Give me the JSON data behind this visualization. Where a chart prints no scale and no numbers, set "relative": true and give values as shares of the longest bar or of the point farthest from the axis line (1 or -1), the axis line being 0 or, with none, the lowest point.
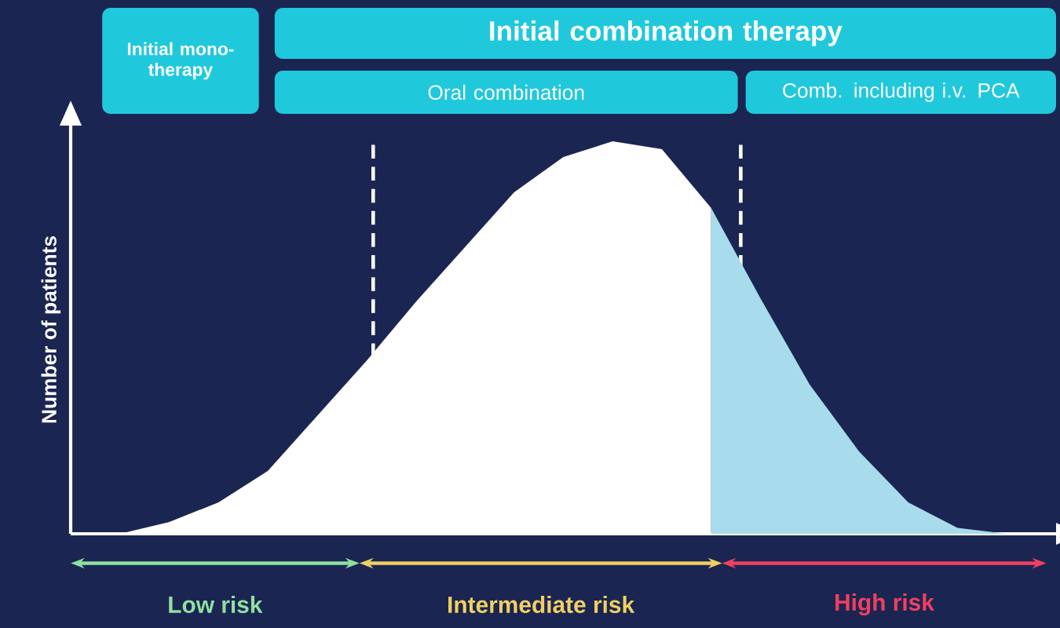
{
  "chart_data": {
    "type": "area",
    "ylabel": "Number of patients",
    "relative": true,
    "categories": [
      null,
      null,
      null,
      null,
      null,
      null,
      null,
      null,
      null,
      null,
      null,
      null,
      null,
      null,
      null,
      null,
      null,
      null,
      null,
      null,
      null
    ],
    "series": [
      {
        "color": "#ffffff",
        "values": [
          0,
          0,
          0.03,
          0.08,
          0.16,
          0.3,
          0.44,
          0.59,
          0.73,
          0.87,
          0.96,
          1.0,
          0.98,
          0.83,
          null,
          null,
          null,
          null,
          null,
          null,
          null
        ]
      },
      {
        "color": "#a8dcec",
        "values": [
          null,
          null,
          null,
          null,
          null,
          null,
          null,
          null,
          null,
          null,
          null,
          null,
          null,
          0.83,
          0.6,
          0.38,
          0.21,
          0.08,
          0.015,
          0,
          0
        ]
      }
    ],
    "annotations": [
      "Initial mono-therapy",
      "Initial combination therapy",
      "Oral combination",
      "Comb. including i.v. PCA",
      "Low risk",
      "Intermediate risk",
      "High risk"
    ]
  }
}
